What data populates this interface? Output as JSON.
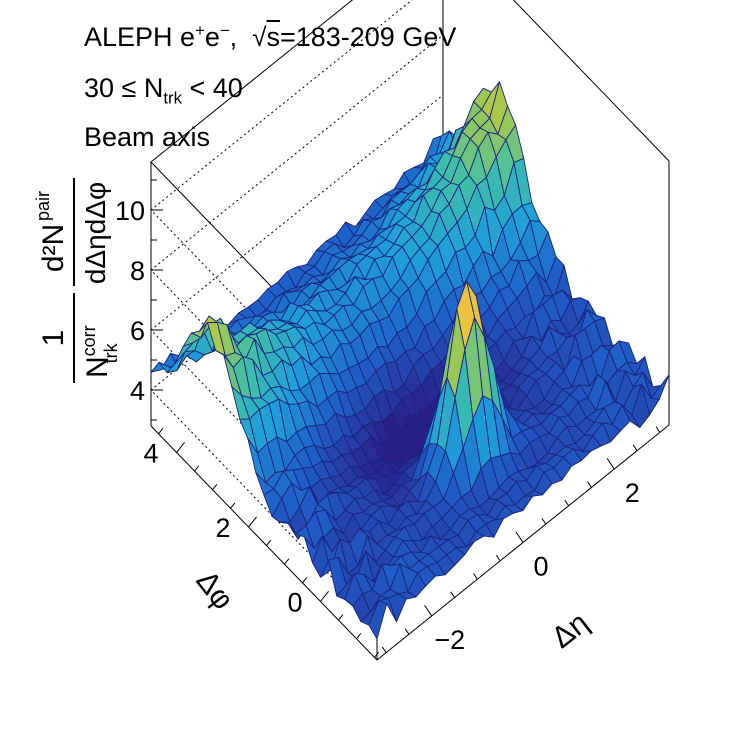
{
  "header": {
    "line1_main": "ALEPH e",
    "line1_sup_plus": "+",
    "line1_e2": "e",
    "line1_sup_minus": "−",
    "line1_comma": ",",
    "line1_sqrt_symbol": "√",
    "line1_s": "s",
    "line1_energy": "=183-209 GeV",
    "line2_prefix": "30 ≤ N",
    "line2_sub": "trk",
    "line2_suffix": " < 40",
    "line3": "Beam axis"
  },
  "chart_data": {
    "type": "surface",
    "xlabel": "Δη",
    "ylabel": "Δφ",
    "zlabel_parts": {
      "num_one": "1",
      "den_N": "N",
      "den_sup": "corr",
      "den_sub": "trk",
      "frac_num": "d²N",
      "frac_num_sup": "pair",
      "frac_den": "dΔηdΔφ"
    },
    "x_ticks": [
      "−2",
      "0",
      "2"
    ],
    "y_ticks": [
      "0",
      "2",
      "4"
    ],
    "z_ticks": [
      "4",
      "6",
      "8",
      "10"
    ],
    "xlim": [
      -3.2,
      3.2
    ],
    "ylim": [
      -1.57,
      4.71
    ],
    "zlim": [
      2.8,
      11.6
    ],
    "peaks": [
      {
        "d_eta": 0.0,
        "d_phi": 0.0,
        "height": 10.0
      },
      {
        "d_eta": -3.2,
        "d_phi": 3.14,
        "height": 10.0
      },
      {
        "d_eta": 3.2,
        "d_phi": 3.14,
        "height": 10.0
      }
    ],
    "baseline": 4.0,
    "colormap": [
      "#2a1e88",
      "#1f5fc9",
      "#1f9fd8",
      "#3fc0a8",
      "#a8c94a",
      "#f2c23c",
      "#fff51a"
    ],
    "mesh_color": "#1a237e",
    "grid": "dotted"
  }
}
